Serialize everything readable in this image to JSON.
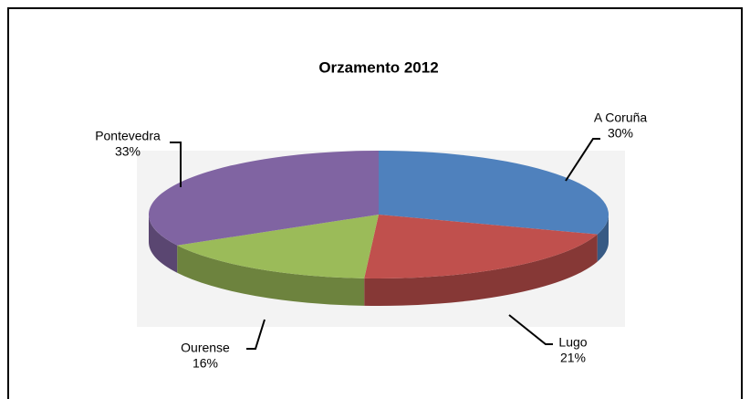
{
  "chart_data": {
    "type": "pie",
    "title": "Orzamento 2012",
    "categories": [
      "A Coruña",
      "Lugo",
      "Ourense",
      "Pontevedra"
    ],
    "values": [
      30,
      21,
      16,
      33
    ],
    "value_labels": [
      "30%",
      "21%",
      "16%",
      "33%"
    ],
    "colors": [
      "#4f81bd",
      "#c0504d",
      "#9bbb59",
      "#8064a2"
    ]
  }
}
